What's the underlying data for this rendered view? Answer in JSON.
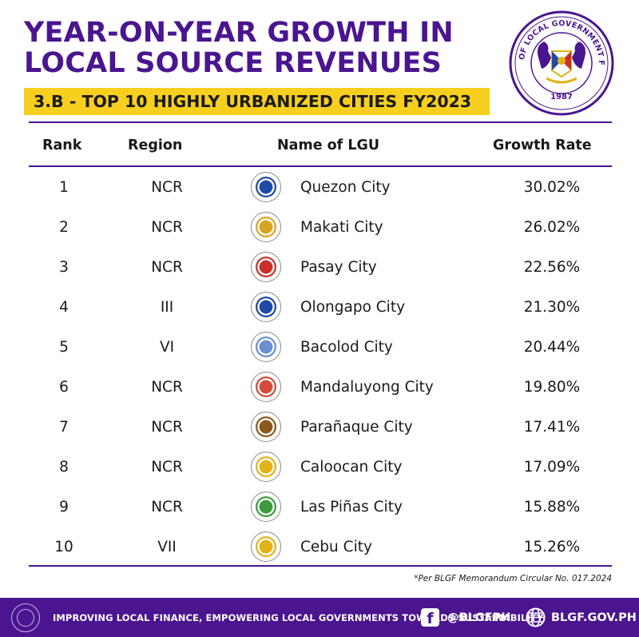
{
  "title": {
    "line1": "YEAR-ON-YEAR GROWTH IN",
    "line2": "LOCAL SOURCE REVENUES"
  },
  "subtitle": "3.B - TOP 10 HIGHLY URBANIZED CITIES FY2023",
  "seal": {
    "text": "BUREAU OF LOCAL GOVERNMENT FINANCE",
    "year": "1987",
    "colors": {
      "ring": "#4a158f",
      "gold": "#e2b319",
      "red": "#c9302c",
      "blue": "#1f4aa8"
    }
  },
  "chart_data": {
    "type": "table",
    "columns": [
      "Rank",
      "Region",
      "Name of LGU",
      "Growth Rate"
    ],
    "rows": [
      {
        "rank": "1",
        "region": "NCR",
        "name": "Quezon City",
        "growth": "30.02%",
        "logo": "quezon-city-seal-icon",
        "logo_color": "#1f4aa8"
      },
      {
        "rank": "2",
        "region": "NCR",
        "name": "Makati City",
        "growth": "26.02%",
        "logo": "makati-city-seal-icon",
        "logo_color": "#d9a521"
      },
      {
        "rank": "3",
        "region": "NCR",
        "name": "Pasay City",
        "growth": "22.56%",
        "logo": "pasay-city-seal-icon",
        "logo_color": "#c9302c"
      },
      {
        "rank": "4",
        "region": "III",
        "name": "Olongapo City",
        "growth": "21.30%",
        "logo": "olongapo-city-seal-icon",
        "logo_color": "#1f4aa8"
      },
      {
        "rank": "5",
        "region": "VI",
        "name": "Bacolod City",
        "growth": "20.44%",
        "logo": "bacolod-city-seal-icon",
        "logo_color": "#6b8fcf"
      },
      {
        "rank": "6",
        "region": "NCR",
        "name": "Mandaluyong City",
        "growth": "19.80%",
        "logo": "mandaluyong-city-seal-icon",
        "logo_color": "#d44a3a"
      },
      {
        "rank": "7",
        "region": "NCR",
        "name": "Parañaque City",
        "growth": "17.41%",
        "logo": "paranaque-city-seal-icon",
        "logo_color": "#8a5a1c"
      },
      {
        "rank": "8",
        "region": "NCR",
        "name": "Caloocan City",
        "growth": "17.09%",
        "logo": "caloocan-city-seal-icon",
        "logo_color": "#e2b319"
      },
      {
        "rank": "9",
        "region": "NCR",
        "name": "Las Piñas City",
        "growth": "15.88%",
        "logo": "las-pinas-city-seal-icon",
        "logo_color": "#3e9a3e"
      },
      {
        "rank": "10",
        "region": "VII",
        "name": "Cebu City",
        "growth": "15.26%",
        "logo": "cebu-city-seal-icon",
        "logo_color": "#e2b319"
      }
    ]
  },
  "footnote": "*Per BLGF Memorandum Circular No. 017.2024",
  "footer": {
    "tagline": "IMPROVING LOCAL FINANCE, EMPOWERING LOCAL GOVERNMENTS TOWARDS SUSTAINABILITY",
    "facebook_handle": "@BLGFPH",
    "website": "BLGF.GOV.PH",
    "background": "#4a158f"
  },
  "colors": {
    "accent": "#4a158f",
    "highlight": "#f7cf1f"
  }
}
